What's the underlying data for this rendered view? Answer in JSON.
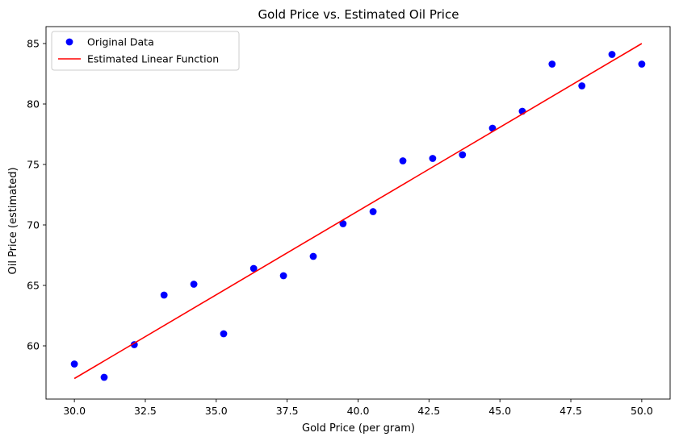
{
  "chart_data": {
    "type": "scatter",
    "title": "Gold Price vs. Estimated Oil Price",
    "xlabel": "Gold Price (per gram)",
    "ylabel": "Oil Price (estimated)",
    "xlim": [
      29.0,
      51.0
    ],
    "ylim": [
      55.6,
      86.4
    ],
    "xticks": [
      30.0,
      32.5,
      35.0,
      37.5,
      40.0,
      42.5,
      45.0,
      47.5,
      50.0
    ],
    "xtick_labels": [
      "30.0",
      "32.5",
      "35.0",
      "37.5",
      "40.0",
      "42.5",
      "45.0",
      "47.5",
      "50.0"
    ],
    "yticks": [
      60,
      65,
      70,
      75,
      80,
      85
    ],
    "ytick_labels": [
      "60",
      "65",
      "70",
      "75",
      "80",
      "85"
    ],
    "grid": false,
    "legend_position": "top-left",
    "series": [
      {
        "name": "Original Data",
        "kind": "scatter",
        "color": "#0000ff",
        "points": [
          [
            30.0,
            58.5
          ],
          [
            31.05,
            57.4
          ],
          [
            32.11,
            60.1
          ],
          [
            33.16,
            64.2
          ],
          [
            34.21,
            65.1
          ],
          [
            35.26,
            61.0
          ],
          [
            36.32,
            66.4
          ],
          [
            37.37,
            65.8
          ],
          [
            38.42,
            67.4
          ],
          [
            39.47,
            70.1
          ],
          [
            40.53,
            71.1
          ],
          [
            41.58,
            75.3
          ],
          [
            42.63,
            75.5
          ],
          [
            43.68,
            75.8
          ],
          [
            44.74,
            78.0
          ],
          [
            45.79,
            79.4
          ],
          [
            46.84,
            83.3
          ],
          [
            47.89,
            81.5
          ],
          [
            48.95,
            84.1
          ],
          [
            50.0,
            83.3
          ]
        ]
      },
      {
        "name": "Estimated Linear Function",
        "kind": "line",
        "color": "#ff0000",
        "points": [
          [
            30.0,
            57.3
          ],
          [
            50.0,
            85.0
          ]
        ]
      }
    ]
  }
}
